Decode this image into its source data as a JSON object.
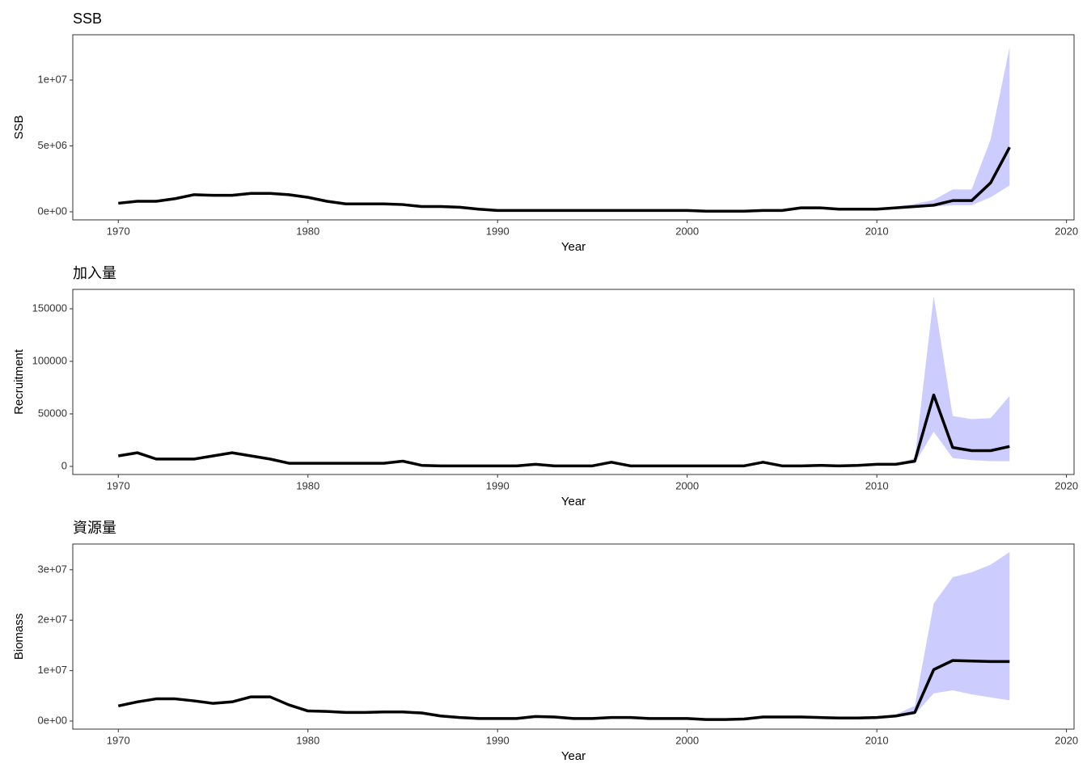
{
  "chart_data": [
    {
      "type": "line",
      "title": "SSB",
      "xlabel": "Year",
      "ylabel": "SSB",
      "color": "#000000",
      "band_color": "#ccccff",
      "x": [
        1970,
        1971,
        1972,
        1973,
        1974,
        1975,
        1976,
        1977,
        1978,
        1979,
        1980,
        1981,
        1982,
        1983,
        1984,
        1985,
        1986,
        1987,
        1988,
        1989,
        1990,
        1991,
        1992,
        1993,
        1994,
        1995,
        1996,
        1997,
        1998,
        1999,
        2000,
        2001,
        2002,
        2003,
        2004,
        2005,
        2006,
        2007,
        2008,
        2009,
        2010,
        2011,
        2012,
        2013,
        2014,
        2015,
        2016,
        2017
      ],
      "values": [
        650000,
        800000,
        800000,
        1000000,
        1300000,
        1250000,
        1250000,
        1400000,
        1400000,
        1300000,
        1100000,
        800000,
        600000,
        600000,
        600000,
        550000,
        400000,
        400000,
        350000,
        200000,
        100000,
        100000,
        100000,
        100000,
        100000,
        100000,
        100000,
        100000,
        100000,
        100000,
        100000,
        50000,
        50000,
        50000,
        100000,
        100000,
        300000,
        300000,
        200000,
        200000,
        200000,
        300000,
        400000,
        500000,
        850000,
        850000,
        2200000,
        4900000
      ],
      "lower": [
        650000,
        800000,
        800000,
        1000000,
        1300000,
        1250000,
        1250000,
        1400000,
        1400000,
        1300000,
        1100000,
        800000,
        600000,
        600000,
        600000,
        550000,
        400000,
        400000,
        350000,
        200000,
        100000,
        100000,
        100000,
        100000,
        100000,
        100000,
        100000,
        100000,
        100000,
        100000,
        100000,
        50000,
        50000,
        50000,
        100000,
        100000,
        300000,
        300000,
        200000,
        200000,
        200000,
        250000,
        300000,
        400000,
        500000,
        500000,
        1100000,
        2000000
      ],
      "upper": [
        650000,
        800000,
        800000,
        1000000,
        1300000,
        1250000,
        1250000,
        1400000,
        1400000,
        1300000,
        1100000,
        800000,
        600000,
        600000,
        600000,
        550000,
        400000,
        400000,
        350000,
        200000,
        100000,
        100000,
        100000,
        100000,
        100000,
        100000,
        100000,
        100000,
        100000,
        100000,
        100000,
        50000,
        50000,
        50000,
        100000,
        100000,
        300000,
        300000,
        200000,
        200000,
        200000,
        400000,
        600000,
        900000,
        1700000,
        1700000,
        5500000,
        12500000
      ],
      "xlim": [
        1967.6,
        2020.4
      ],
      "xticks": [
        1970,
        1980,
        1990,
        2000,
        2010,
        2020
      ],
      "ylim": [
        -612000,
        13440000
      ],
      "yticks": [
        {
          "value": 0,
          "label": "0e+00"
        },
        {
          "value": 5000000,
          "label": "5e+06"
        },
        {
          "value": 10000000,
          "label": "1e+07"
        }
      ]
    },
    {
      "type": "line",
      "title": "加入量",
      "xlabel": "Year",
      "ylabel": "Recruitment",
      "color": "#000000",
      "band_color": "#ccccff",
      "x": [
        1970,
        1971,
        1972,
        1973,
        1974,
        1975,
        1976,
        1977,
        1978,
        1979,
        1980,
        1981,
        1982,
        1983,
        1984,
        1985,
        1986,
        1987,
        1988,
        1989,
        1990,
        1991,
        1992,
        1993,
        1994,
        1995,
        1996,
        1997,
        1998,
        1999,
        2000,
        2001,
        2002,
        2003,
        2004,
        2005,
        2006,
        2007,
        2008,
        2009,
        2010,
        2011,
        2012,
        2013,
        2014,
        2015,
        2016,
        2017
      ],
      "values": [
        10000,
        13000,
        7000,
        7000,
        7000,
        10000,
        13000,
        10000,
        7000,
        3000,
        3000,
        3000,
        3000,
        3000,
        3000,
        5000,
        1000,
        500,
        500,
        500,
        500,
        500,
        2000,
        500,
        500,
        500,
        4000,
        500,
        500,
        500,
        500,
        500,
        500,
        500,
        4000,
        500,
        500,
        1000,
        500,
        1000,
        2000,
        2000,
        5000,
        68000,
        18000,
        15000,
        15000,
        19000
      ],
      "lower": [
        10000,
        13000,
        7000,
        7000,
        7000,
        10000,
        13000,
        10000,
        7000,
        3000,
        3000,
        3000,
        3000,
        3000,
        3000,
        5000,
        1000,
        500,
        500,
        500,
        500,
        500,
        2000,
        500,
        500,
        500,
        4000,
        500,
        500,
        500,
        500,
        500,
        500,
        500,
        4000,
        500,
        500,
        1000,
        500,
        1000,
        2000,
        2000,
        3000,
        33000,
        8000,
        6000,
        5000,
        5000
      ],
      "upper": [
        10000,
        13000,
        7000,
        7000,
        7000,
        10000,
        13000,
        10000,
        7000,
        3000,
        3000,
        3000,
        3000,
        3000,
        3000,
        5000,
        1000,
        500,
        500,
        500,
        500,
        500,
        2000,
        500,
        500,
        500,
        4000,
        500,
        500,
        500,
        500,
        500,
        500,
        500,
        4000,
        500,
        500,
        1000,
        500,
        1000,
        2000,
        2000,
        8000,
        162000,
        48000,
        45000,
        46000,
        67000
      ],
      "xlim": [
        1967.6,
        2020.4
      ],
      "xticks": [
        1970,
        1980,
        1990,
        2000,
        2010,
        2020
      ],
      "ylim": [
        -7700,
        168500
      ],
      "yticks": [
        0,
        50000,
        100000,
        150000
      ]
    },
    {
      "type": "line",
      "title": "資源量",
      "xlabel": "Year",
      "ylabel": "Biomass",
      "color": "#000000",
      "band_color": "#ccccff",
      "x": [
        1970,
        1971,
        1972,
        1973,
        1974,
        1975,
        1976,
        1977,
        1978,
        1979,
        1980,
        1981,
        1982,
        1983,
        1984,
        1985,
        1986,
        1987,
        1988,
        1989,
        1990,
        1991,
        1992,
        1993,
        1994,
        1995,
        1996,
        1997,
        1998,
        1999,
        2000,
        2001,
        2002,
        2003,
        2004,
        2005,
        2006,
        2007,
        2008,
        2009,
        2010,
        2011,
        2012,
        2013,
        2014,
        2015,
        2016,
        2017
      ],
      "values": [
        3000000,
        3800000,
        4400000,
        4400000,
        4000000,
        3500000,
        3800000,
        4800000,
        4800000,
        3200000,
        2000000,
        1900000,
        1700000,
        1700000,
        1800000,
        1800000,
        1600000,
        1000000,
        700000,
        500000,
        500000,
        500000,
        900000,
        800000,
        500000,
        500000,
        700000,
        700000,
        500000,
        500000,
        500000,
        300000,
        300000,
        400000,
        800000,
        800000,
        800000,
        700000,
        600000,
        600000,
        700000,
        1000000,
        1700000,
        10200000,
        12000000,
        11900000,
        11800000,
        11800000
      ],
      "lower": [
        3000000,
        3800000,
        4400000,
        4400000,
        4000000,
        3500000,
        3800000,
        4800000,
        4800000,
        3200000,
        2000000,
        1900000,
        1700000,
        1700000,
        1800000,
        1800000,
        1600000,
        1000000,
        700000,
        500000,
        500000,
        500000,
        900000,
        800000,
        500000,
        500000,
        700000,
        700000,
        500000,
        500000,
        500000,
        300000,
        300000,
        400000,
        800000,
        800000,
        800000,
        700000,
        600000,
        600000,
        700000,
        900000,
        1300000,
        5500000,
        6100000,
        5300000,
        4700000,
        4100000
      ],
      "upper": [
        3000000,
        3800000,
        4400000,
        4400000,
        4000000,
        3500000,
        3800000,
        4800000,
        4800000,
        3200000,
        2000000,
        1900000,
        1700000,
        1700000,
        1800000,
        1800000,
        1600000,
        1000000,
        700000,
        500000,
        500000,
        500000,
        900000,
        800000,
        500000,
        500000,
        700000,
        700000,
        500000,
        500000,
        500000,
        300000,
        300000,
        400000,
        800000,
        800000,
        800000,
        700000,
        600000,
        600000,
        700000,
        1300000,
        3000000,
        23300000,
        28500000,
        29500000,
        31000000,
        33500000
      ],
      "xlim": [
        1967.6,
        2020.4
      ],
      "xticks": [
        1970,
        1980,
        1990,
        2000,
        2010,
        2020
      ],
      "ylim": [
        -1600000,
        35100000
      ],
      "yticks": [
        {
          "value": 0,
          "label": "0e+00"
        },
        {
          "value": 10000000,
          "label": "1e+07"
        },
        {
          "value": 20000000,
          "label": "2e+07"
        },
        {
          "value": 30000000,
          "label": "3e+07"
        }
      ]
    }
  ]
}
